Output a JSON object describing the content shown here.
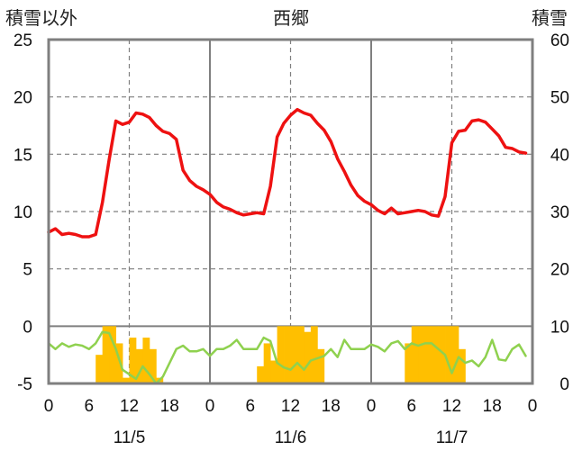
{
  "chart_data": {
    "type": "line",
    "title": "西郷",
    "y_left_label": "積雪以外",
    "y_right_label": "積雪",
    "y_left": {
      "min": -5,
      "max": 25,
      "ticks": [
        -5,
        0,
        5,
        10,
        15,
        20,
        25
      ]
    },
    "y_right": {
      "min": 0,
      "max": 60,
      "ticks": [
        0,
        10,
        20,
        30,
        40,
        50,
        60
      ]
    },
    "x_ticks": [
      "0",
      "6",
      "12",
      "18",
      "0",
      "6",
      "12",
      "18",
      "0",
      "6",
      "12",
      "18",
      "0"
    ],
    "date_labels": [
      "11/5",
      "11/6",
      "11/7"
    ],
    "hours_per_day": 24,
    "days": 3,
    "grid": true,
    "colors": {
      "temperature": "#ee1111",
      "bars": "#ffbf00",
      "lower": "#8fd14f",
      "frame": "#7f7f7f",
      "grid": "#7f7f7f"
    },
    "series": [
      {
        "kind": "line",
        "axis": "left",
        "color": "#ee1111",
        "x_hours": [
          0,
          1,
          2,
          3,
          4,
          5,
          6,
          7,
          8,
          9,
          10,
          11,
          12,
          13,
          14,
          15,
          16,
          17,
          18,
          19,
          20,
          21,
          22,
          23,
          24,
          25,
          26,
          27,
          28,
          29,
          30,
          31,
          32,
          33,
          34,
          35,
          36,
          37,
          38,
          39,
          40,
          41,
          42,
          43,
          44,
          45,
          46,
          47,
          48,
          49,
          50,
          51,
          52,
          53,
          54,
          55,
          56,
          57,
          58,
          59,
          60,
          61,
          62,
          63,
          64,
          65,
          66,
          67,
          68,
          69,
          70,
          71
        ],
        "values": [
          8.2,
          8.5,
          8.0,
          8.1,
          8.0,
          7.8,
          7.8,
          8.0,
          10.8,
          14.5,
          17.9,
          17.6,
          17.8,
          18.6,
          18.5,
          18.2,
          17.5,
          17.0,
          16.8,
          16.3,
          13.6,
          12.7,
          12.2,
          11.9,
          11.5,
          10.8,
          10.4,
          10.2,
          9.9,
          9.7,
          9.8,
          9.9,
          9.8,
          12.2,
          16.5,
          17.7,
          18.4,
          18.9,
          18.6,
          18.4,
          17.7,
          17.1,
          16.1,
          14.6,
          13.5,
          12.3,
          11.4,
          10.9,
          10.6,
          10.1,
          9.8,
          10.3,
          9.8,
          9.9,
          10.0,
          10.1,
          10.0,
          9.7,
          9.6,
          11.3,
          16.0,
          17.0,
          17.1,
          17.9,
          18.0,
          17.8,
          17.2,
          16.6,
          15.6,
          15.5,
          15.2,
          15.1
        ]
      },
      {
        "kind": "bar",
        "axis": "right",
        "color": "#ffbf00",
        "x_hours": [
          7,
          8,
          9,
          10,
          11,
          12,
          13,
          14,
          15,
          16,
          17,
          31,
          32,
          33,
          34,
          35,
          36,
          37,
          38,
          39,
          40,
          41,
          53,
          54,
          55,
          56,
          57,
          58,
          59,
          60,
          61
        ],
        "values": [
          5,
          10,
          10,
          7,
          1,
          8,
          6,
          8,
          6,
          1,
          0,
          3,
          7,
          4,
          10,
          10,
          10,
          10,
          9,
          10,
          6,
          0,
          7,
          10,
          10,
          10,
          10,
          10,
          10,
          10,
          6
        ]
      },
      {
        "kind": "line",
        "axis": "left",
        "color": "#8fd14f",
        "x_hours": [
          0,
          1,
          2,
          3,
          4,
          5,
          6,
          7,
          8,
          9,
          10,
          11,
          12,
          13,
          14,
          15,
          16,
          17,
          18,
          19,
          20,
          21,
          22,
          23,
          24,
          25,
          26,
          27,
          28,
          29,
          30,
          31,
          32,
          33,
          34,
          35,
          36,
          37,
          38,
          39,
          40,
          41,
          42,
          43,
          44,
          45,
          46,
          47,
          48,
          49,
          50,
          51,
          52,
          53,
          54,
          55,
          56,
          57,
          58,
          59,
          60,
          61,
          62,
          63,
          64,
          65,
          66,
          67,
          68,
          69,
          70,
          71
        ],
        "values": [
          -1.5,
          -2.0,
          -1.5,
          -1.8,
          -1.6,
          -1.7,
          -2.0,
          -1.5,
          -0.5,
          -0.6,
          -2.0,
          -3.8,
          -4.2,
          -4.6,
          -3.5,
          -4.2,
          -5.0,
          -4.4,
          -3.2,
          -2.0,
          -1.7,
          -2.2,
          -2.2,
          -2.0,
          -2.6,
          -2.0,
          -2.0,
          -1.7,
          -1.2,
          -2.0,
          -2.0,
          -2.0,
          -1.0,
          -1.3,
          -3.2,
          -3.6,
          -3.8,
          -3.2,
          -3.8,
          -3.0,
          -2.8,
          -2.6,
          -2.0,
          -2.7,
          -1.2,
          -2.0,
          -2.0,
          -2.0,
          -1.6,
          -1.8,
          -2.2,
          -1.5,
          -1.3,
          -2.0,
          -1.5,
          -1.7,
          -1.5,
          -1.5,
          -2.0,
          -2.5,
          -4.1,
          -2.7,
          -3.2,
          -3.0,
          -3.5,
          -2.7,
          -1.2,
          -2.9,
          -3.0,
          -2.0,
          -1.6,
          -2.6
        ]
      }
    ]
  }
}
